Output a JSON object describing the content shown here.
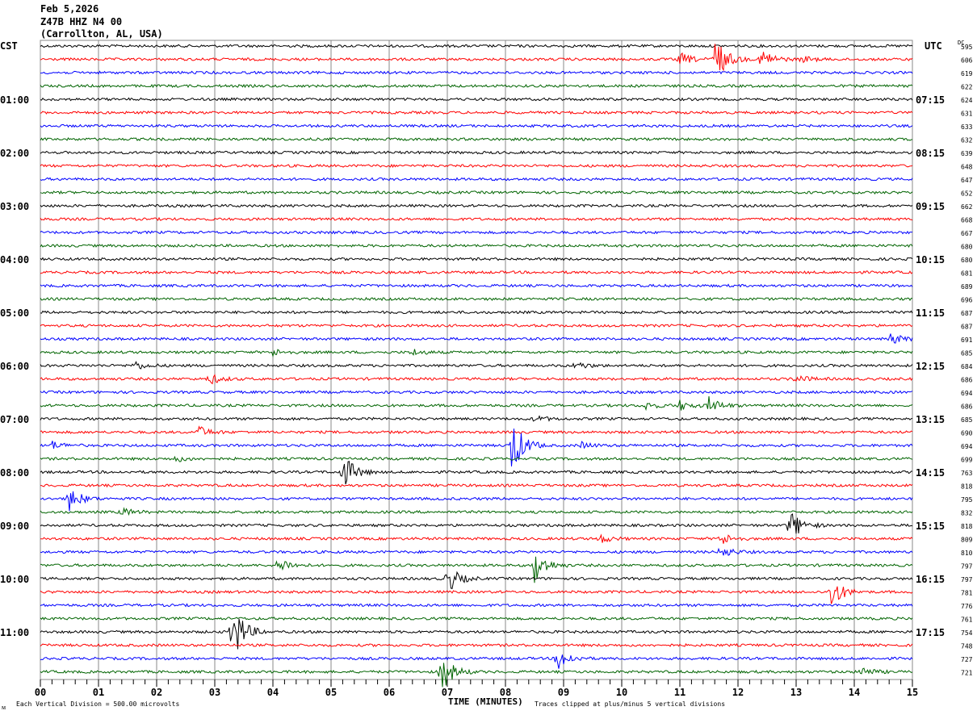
{
  "header": {
    "date": "Feb 5,2026",
    "station": "Z47B HHZ N4 00",
    "location": "(Carrollton, AL, USA)"
  },
  "left_tz": "CST",
  "right_tz": "UTC",
  "dc_label": "DC",
  "footer": {
    "scale": "Each Vertical Division =  500.00 microvolts",
    "xlabel": "TIME (MINUTES)",
    "clip_note": "Traces clipped at plus/minus 5 vertical divisions",
    "corner": "ᴍ"
  },
  "chart_data": {
    "type": "line",
    "title": "Z47B HHZ N4 00 helicorder",
    "xlabel": "TIME (MINUTES)",
    "xlim": [
      0,
      15
    ],
    "x_ticks": [
      "00",
      "01",
      "02",
      "03",
      "04",
      "05",
      "06",
      "07",
      "08",
      "09",
      "10",
      "11",
      "12",
      "13",
      "14",
      "15"
    ],
    "trace_colors": [
      "#000000",
      "#ff0000",
      "#0000ff",
      "#006400"
    ],
    "left_hour_labels": [
      "",
      "01:00",
      "02:00",
      "03:00",
      "04:00",
      "05:00",
      "06:00",
      "07:00",
      "08:00",
      "09:00",
      "10:00",
      "11:00"
    ],
    "right_hour_labels": [
      "",
      "07:15",
      "08:15",
      "09:15",
      "10:15",
      "11:15",
      "12:15",
      "13:15",
      "14:15",
      "15:15",
      "16:15",
      "17:15"
    ],
    "dc_offsets": [
      595,
      606,
      619,
      622,
      624,
      631,
      633,
      632,
      639,
      648,
      647,
      652,
      662,
      668,
      667,
      680,
      680,
      681,
      689,
      696,
      687,
      687,
      691,
      685,
      684,
      686,
      694,
      686,
      685,
      690,
      694,
      699,
      763,
      818,
      795,
      832,
      818,
      809,
      810,
      797,
      797,
      781,
      776,
      761,
      754,
      748,
      727,
      721
    ],
    "events": [
      {
        "row": 1,
        "minute": 11.0,
        "amp": 8
      },
      {
        "row": 1,
        "minute": 11.6,
        "amp": 30
      },
      {
        "row": 1,
        "minute": 12.4,
        "amp": 15
      },
      {
        "row": 1,
        "minute": 13.1,
        "amp": 4
      },
      {
        "row": 22,
        "minute": 14.6,
        "amp": 8
      },
      {
        "row": 23,
        "minute": 4.0,
        "amp": 4
      },
      {
        "row": 23,
        "minute": 6.4,
        "amp": 4
      },
      {
        "row": 24,
        "minute": 1.6,
        "amp": 6
      },
      {
        "row": 24,
        "minute": 9.2,
        "amp": 5
      },
      {
        "row": 25,
        "minute": 2.9,
        "amp": 7
      },
      {
        "row": 25,
        "minute": 13.0,
        "amp": 5
      },
      {
        "row": 27,
        "minute": 10.4,
        "amp": 5
      },
      {
        "row": 27,
        "minute": 11.0,
        "amp": 6
      },
      {
        "row": 27,
        "minute": 11.5,
        "amp": 10
      },
      {
        "row": 28,
        "minute": 8.5,
        "amp": 4
      },
      {
        "row": 29,
        "minute": 2.7,
        "amp": 8
      },
      {
        "row": 30,
        "minute": 0.2,
        "amp": 5
      },
      {
        "row": 30,
        "minute": 8.1,
        "amp": 40
      },
      {
        "row": 30,
        "minute": 9.3,
        "amp": 4
      },
      {
        "row": 31,
        "minute": 2.3,
        "amp": 4
      },
      {
        "row": 32,
        "minute": 5.2,
        "amp": 25
      },
      {
        "row": 34,
        "minute": 0.5,
        "amp": 15
      },
      {
        "row": 35,
        "minute": 1.4,
        "amp": 5
      },
      {
        "row": 36,
        "minute": 12.9,
        "amp": 20
      },
      {
        "row": 37,
        "minute": 9.6,
        "amp": 6
      },
      {
        "row": 37,
        "minute": 11.7,
        "amp": 8
      },
      {
        "row": 38,
        "minute": 11.7,
        "amp": 8
      },
      {
        "row": 39,
        "minute": 4.1,
        "amp": 10
      },
      {
        "row": 39,
        "minute": 8.5,
        "amp": 22
      },
      {
        "row": 40,
        "minute": 7.0,
        "amp": 18
      },
      {
        "row": 41,
        "minute": 13.6,
        "amp": 20
      },
      {
        "row": 44,
        "minute": 3.3,
        "amp": 40
      },
      {
        "row": 46,
        "minute": 8.9,
        "amp": 15
      },
      {
        "row": 47,
        "minute": 6.9,
        "amp": 25
      },
      {
        "row": 47,
        "minute": 14.1,
        "amp": 7
      }
    ]
  }
}
